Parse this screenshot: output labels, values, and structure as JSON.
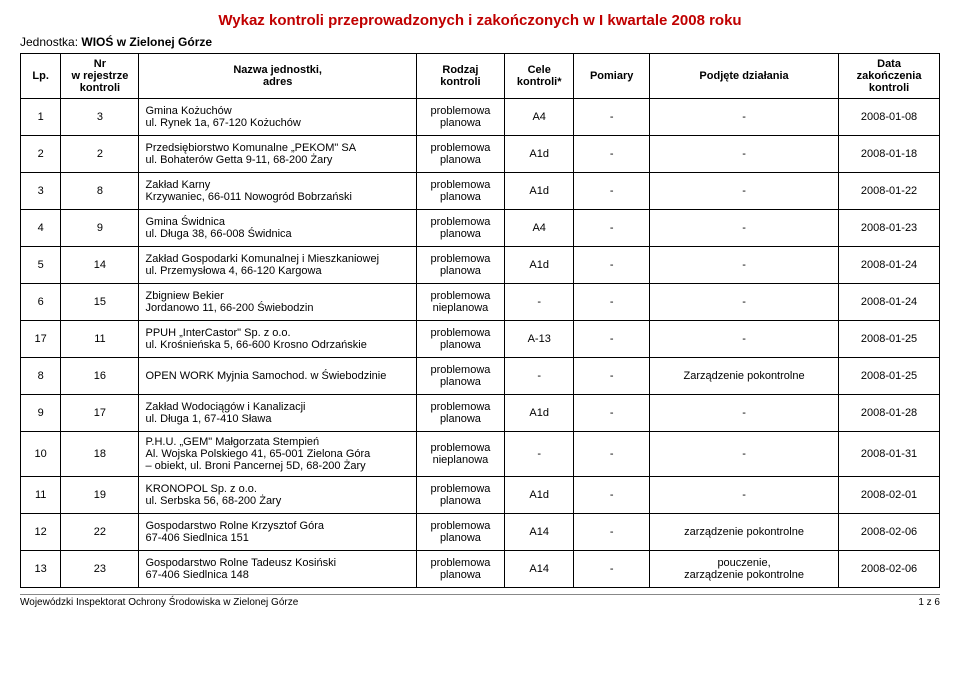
{
  "title": "Wykaz kontroli przeprowadzonych i zakończonych w I kwartale 2008 roku",
  "unit_label": "Jednostka: ",
  "unit_value": "WIOŚ w Zielonej Górze",
  "columns": [
    "Lp.",
    "Nr\nw rejestrze\nkontroli",
    "Nazwa jednostki,\nadres",
    "Rodzaj\nkontroli",
    "Cele\nkontroli*",
    "Pomiary",
    "Podjęte działania",
    "Data\nzakończenia\nkontroli"
  ],
  "rows": [
    {
      "lp": "1",
      "nr": "3",
      "name": "Gmina Kożuchów\nul. Rynek 1a, 67-120 Kożuchów",
      "type": "problemowa\nplanowa",
      "goal": "A4",
      "meas": "-",
      "act": "-",
      "date": "2008-01-08"
    },
    {
      "lp": "2",
      "nr": "2",
      "name": "Przedsiębiorstwo Komunalne „PEKOM\" SA\nul. Bohaterów Getta 9-11, 68-200 Żary",
      "type": "problemowa\nplanowa",
      "goal": "A1d",
      "meas": "-",
      "act": "-",
      "date": "2008-01-18"
    },
    {
      "lp": "3",
      "nr": "8",
      "name": "Zakład Karny\nKrzywaniec, 66-011 Nowogród Bobrzański",
      "type": "problemowa\nplanowa",
      "goal": "A1d",
      "meas": "-",
      "act": "-",
      "date": "2008-01-22"
    },
    {
      "lp": "4",
      "nr": "9",
      "name": "Gmina Świdnica\nul. Długa 38, 66-008 Świdnica",
      "type": "problemowa\nplanowa",
      "goal": "A4",
      "meas": "-",
      "act": "-",
      "date": "2008-01-23"
    },
    {
      "lp": "5",
      "nr": "14",
      "name": "Zakład Gospodarki Komunalnej i Mieszkaniowej\nul. Przemysłowa 4, 66-120 Kargowa",
      "type": "problemowa\nplanowa",
      "goal": "A1d",
      "meas": "-",
      "act": "-",
      "date": "2008-01-24"
    },
    {
      "lp": "6",
      "nr": "15",
      "name": "Zbigniew Bekier\nJordanowo 11, 66-200 Świebodzin",
      "type": "problemowa\nnieplanowa",
      "goal": "-",
      "meas": "-",
      "act": "-",
      "date": "2008-01-24"
    },
    {
      "lp": "17",
      "nr": "11",
      "name": "PPUH „InterCastor\" Sp. z o.o.\n ul. Krośnieńska 5, 66-600 Krosno Odrzańskie",
      "type": "problemowa\nplanowa",
      "goal": "A-13",
      "meas": "-",
      "act": "-",
      "date": "2008-01-25"
    },
    {
      "lp": "8",
      "nr": "16",
      "name": "OPEN WORK Myjnia Samochod. w Świebodzinie",
      "type": "problemowa\nplanowa",
      "goal": "-",
      "meas": "-",
      "act": "Zarządzenie pokontrolne",
      "date": "2008-01-25"
    },
    {
      "lp": "9",
      "nr": "17",
      "name": "Zakład Wodociągów i Kanalizacji\nul. Długa 1, 67-410 Sława",
      "type": "problemowa\nplanowa",
      "goal": "A1d",
      "meas": "-",
      "act": "-",
      "date": "2008-01-28"
    },
    {
      "lp": "10",
      "nr": "18",
      "name": "P.H.U. „GEM\" Małgorzata Stempień\nAl. Wojska Polskiego 41, 65-001 Zielona Góra\n– obiekt, ul. Broni Pancernej 5D, 68-200 Żary",
      "type": "problemowa\nnieplanowa",
      "goal": "-",
      "meas": "-",
      "act": "-",
      "date": "2008-01-31"
    },
    {
      "lp": "11",
      "nr": "19",
      "name": "KRONOPOL Sp. z o.o.\nul. Serbska 56, 68-200 Żary",
      "type": "problemowa\nplanowa",
      "goal": "A1d",
      "meas": "-",
      "act": "-",
      "date": "2008-02-01"
    },
    {
      "lp": "12",
      "nr": "22",
      "name": "Gospodarstwo Rolne Krzysztof Góra\n67-406 Siedlnica 151",
      "type": "problemowa\nplanowa",
      "goal": "A14",
      "meas": "-",
      "act": "zarządzenie pokontrolne",
      "date": "2008-02-06"
    },
    {
      "lp": "13",
      "nr": "23",
      "name": "Gospodarstwo Rolne Tadeusz Kosiński\n67-406 Siedlnica 148",
      "type": "problemowa\nplanowa",
      "goal": "A14",
      "meas": "-",
      "act": "pouczenie,\nzarządzenie pokontrolne",
      "date": "2008-02-06"
    }
  ],
  "footer_left": "Wojewódzki Inspektorat Ochrony Środowiska w Zielonej Górze",
  "footer_right": "1 z 6"
}
